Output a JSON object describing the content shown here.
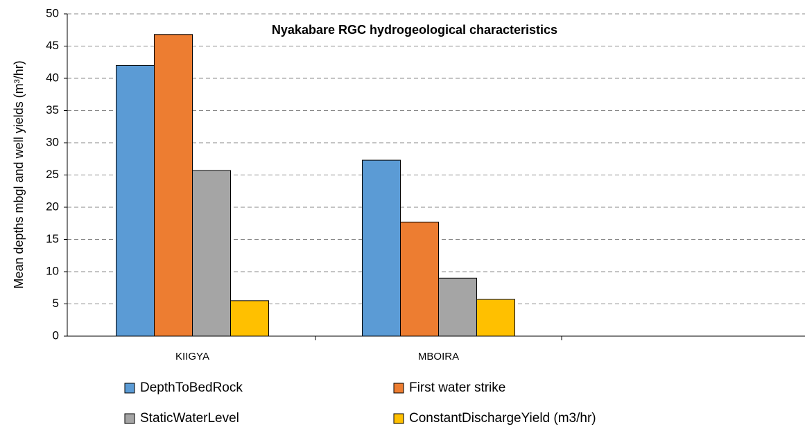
{
  "chart_data": {
    "type": "bar",
    "title": "Nyakabare RGC hydrogeological characteristics",
    "y_label": "Mean depths mbgl and well yields (m³/hr)",
    "categories": [
      "KIIGYA",
      "MBOIRA",
      null
    ],
    "series": [
      {
        "name": "DepthToBedRock",
        "color": "#5b9bd5",
        "values": [
          42.0,
          27.3,
          null
        ]
      },
      {
        "name": "First water strike",
        "color": "#ed7d31",
        "values": [
          46.8,
          17.7,
          null
        ]
      },
      {
        "name": "StaticWaterLevel",
        "color": "#a5a5a5",
        "values": [
          25.7,
          9.0,
          null
        ]
      },
      {
        "name": "ConstantDischargeYield (m3/hr)",
        "color": "#ffc000",
        "values": [
          5.5,
          5.7,
          null
        ]
      }
    ],
    "ylim": [
      0,
      50
    ],
    "yticks": [
      0,
      5,
      10,
      15,
      20,
      25,
      30,
      35,
      40,
      45,
      50
    ],
    "grid": true,
    "legend": "bottom"
  }
}
